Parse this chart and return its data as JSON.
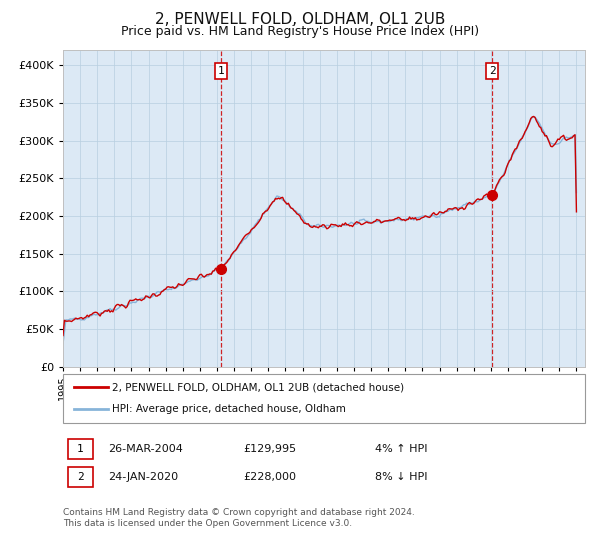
{
  "title": "2, PENWELL FOLD, OLDHAM, OL1 2UB",
  "subtitle": "Price paid vs. HM Land Registry's House Price Index (HPI)",
  "title_fontsize": 11,
  "subtitle_fontsize": 9,
  "fig_bg_color": "#ffffff",
  "plot_bg_color": "#dce9f5",
  "hpi_color": "#87b4d9",
  "price_color": "#cc0000",
  "grid_color": "#b8cfe0",
  "ylim": [
    0,
    420000
  ],
  "yticks": [
    0,
    50000,
    100000,
    150000,
    200000,
    250000,
    300000,
    350000,
    400000
  ],
  "xlim_start": 1995,
  "xlim_end": 2025.5,
  "purchase1_year": 2004.23,
  "purchase1_price": 129995,
  "purchase2_year": 2020.07,
  "purchase2_price": 228000,
  "legend_label1": "2, PENWELL FOLD, OLDHAM, OL1 2UB (detached house)",
  "legend_label2": "HPI: Average price, detached house, Oldham",
  "note1_label": "1",
  "note1_date": "26-MAR-2004",
  "note1_price": "£129,995",
  "note1_hpi": "4% ↑ HPI",
  "note2_label": "2",
  "note2_date": "24-JAN-2020",
  "note2_price": "£228,000",
  "note2_hpi": "8% ↓ HPI",
  "footer": "Contains HM Land Registry data © Crown copyright and database right 2024.\nThis data is licensed under the Open Government Licence v3.0."
}
